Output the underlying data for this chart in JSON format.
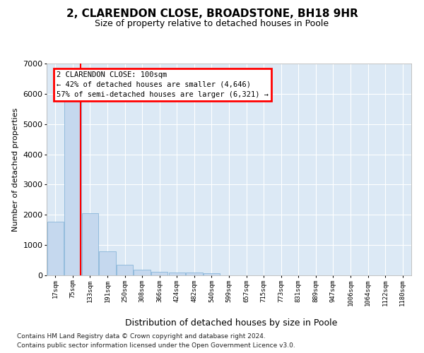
{
  "title": "2, CLARENDON CLOSE, BROADSTONE, BH18 9HR",
  "subtitle": "Size of property relative to detached houses in Poole",
  "xlabel": "Distribution of detached houses by size in Poole",
  "ylabel": "Number of detached properties",
  "bar_labels": [
    "17sqm",
    "75sqm",
    "133sqm",
    "191sqm",
    "250sqm",
    "308sqm",
    "366sqm",
    "424sqm",
    "482sqm",
    "540sqm",
    "599sqm",
    "657sqm",
    "715sqm",
    "773sqm",
    "831sqm",
    "889sqm",
    "947sqm",
    "1006sqm",
    "1064sqm",
    "1122sqm",
    "1180sqm"
  ],
  "bar_values": [
    1780,
    5800,
    2050,
    800,
    340,
    190,
    120,
    100,
    90,
    80,
    0,
    0,
    0,
    0,
    0,
    0,
    0,
    0,
    0,
    0,
    0
  ],
  "bar_color": "#c5d8ee",
  "bar_edgecolor": "#7aadd4",
  "red_line_x": 1.45,
  "annotation_text": "2 CLARENDON CLOSE: 100sqm\n← 42% of detached houses are smaller (4,646)\n57% of semi-detached houses are larger (6,321) →",
  "ylim": [
    0,
    7000
  ],
  "yticks": [
    0,
    1000,
    2000,
    3000,
    4000,
    5000,
    6000,
    7000
  ],
  "footer_line1": "Contains HM Land Registry data © Crown copyright and database right 2024.",
  "footer_line2": "Contains public sector information licensed under the Open Government Licence v3.0.",
  "bg_color": "#dce9f5",
  "grid_color": "#ffffff",
  "title_fontsize": 11,
  "subtitle_fontsize": 9
}
